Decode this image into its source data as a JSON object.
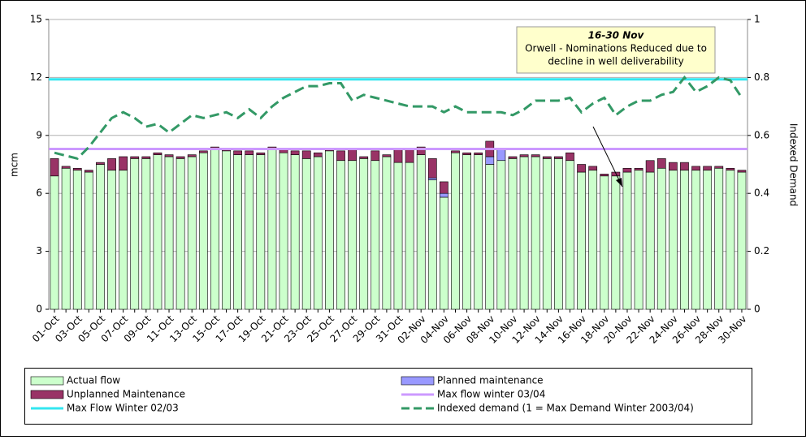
{
  "chart_data": {
    "type": "bar",
    "stacked": true,
    "ylabel": "mcm",
    "y2label": "Indexed Demand",
    "ylim": [
      0,
      15
    ],
    "yticks": [
      0,
      3,
      6,
      9,
      12,
      15
    ],
    "y2lim": [
      0,
      1
    ],
    "y2ticks": [
      0,
      0.2,
      0.4,
      0.6,
      0.8,
      1
    ],
    "grid": true,
    "categories": [
      "01-Oct",
      null,
      "03-Oct",
      null,
      "05-Oct",
      null,
      "07-Oct",
      null,
      "09-Oct",
      null,
      "11-Oct",
      null,
      "13-Oct",
      null,
      "15-Oct",
      null,
      "17-Oct",
      null,
      "19-Oct",
      null,
      "21-Oct",
      null,
      "23-Oct",
      null,
      "25-Oct",
      null,
      "27-Oct",
      null,
      "29-Oct",
      null,
      "31-Oct",
      null,
      "02-Nov",
      null,
      "04-Nov",
      null,
      "06-Nov",
      null,
      "08-Nov",
      null,
      "10-Nov",
      null,
      "12-Nov",
      null,
      "14-Nov",
      null,
      "16-Nov",
      null,
      "18-Nov",
      null,
      "20-Nov",
      null,
      "22-Nov",
      null,
      "24-Nov",
      null,
      "26-Nov",
      null,
      "28-Nov",
      null,
      "30-Nov"
    ],
    "series": [
      {
        "name": "Actual flow",
        "mark": "bar",
        "color": "#ccffcc",
        "values": [
          6.9,
          7.3,
          7.2,
          7.1,
          7.5,
          7.2,
          7.2,
          7.8,
          7.8,
          8.0,
          7.9,
          7.8,
          7.9,
          8.1,
          8.3,
          8.2,
          8.0,
          8.0,
          8.0,
          8.3,
          8.1,
          8.0,
          7.8,
          7.9,
          8.2,
          7.7,
          7.7,
          7.8,
          7.7,
          7.9,
          7.6,
          7.6,
          8.0,
          6.7,
          5.8,
          8.1,
          8.0,
          8.0,
          7.5,
          7.7,
          7.8,
          7.9,
          7.9,
          7.8,
          7.8,
          7.7,
          7.1,
          7.2,
          6.9,
          6.9,
          7.1,
          7.2,
          7.1,
          7.3,
          7.2,
          7.2,
          7.2,
          7.2,
          7.3,
          7.2,
          7.1
        ]
      },
      {
        "name": "Planned maintenance",
        "mark": "bar",
        "color": "#9999ff",
        "values": [
          0,
          0,
          0,
          0,
          0,
          0,
          0,
          0,
          0,
          0,
          0,
          0,
          0,
          0,
          0,
          0,
          0,
          0,
          0,
          0,
          0,
          0,
          0,
          0,
          0,
          0,
          0,
          0,
          0,
          0,
          0,
          0,
          0,
          0.1,
          0.2,
          0,
          0,
          0,
          0.4,
          0.6,
          0,
          0,
          0,
          0,
          0,
          0,
          0,
          0,
          0,
          0,
          0,
          0,
          0,
          0,
          0,
          0,
          0,
          0,
          0,
          0,
          0
        ]
      },
      {
        "name": "Unplanned Maintenance",
        "mark": "bar",
        "color": "#993366",
        "values": [
          0.9,
          0.1,
          0.1,
          0.1,
          0.1,
          0.6,
          0.7,
          0.1,
          0.1,
          0.1,
          0.1,
          0.1,
          0.1,
          0.1,
          0.1,
          0.1,
          0.2,
          0.2,
          0.1,
          0.1,
          0.2,
          0.2,
          0.4,
          0.2,
          0.1,
          0.5,
          0.6,
          0.1,
          0.5,
          0.1,
          0.7,
          0.7,
          0.4,
          1.0,
          0.6,
          0.1,
          0.1,
          0.1,
          0.8,
          0,
          0.1,
          0.1,
          0.1,
          0.1,
          0.1,
          0.4,
          0.4,
          0.2,
          0.1,
          0.2,
          0.2,
          0.1,
          0.6,
          0.5,
          0.4,
          0.4,
          0.2,
          0.2,
          0.1,
          0.1,
          0.1
        ]
      },
      {
        "name": "Max flow winter 03/04",
        "mark": "hline",
        "color": "#cc99ff",
        "value": 8.3
      },
      {
        "name": "Max Flow Winter 02/03",
        "mark": "hline",
        "color": "#33e6f0",
        "value": 11.9
      },
      {
        "name": "Indexed demand (1 = Max Demand Winter 2003/04)",
        "mark": "line",
        "dash": true,
        "axis": "y2",
        "color": "#339966",
        "values": [
          0.54,
          0.53,
          0.52,
          0.56,
          0.61,
          0.66,
          0.68,
          0.66,
          0.63,
          0.64,
          0.61,
          0.64,
          0.67,
          0.66,
          0.67,
          0.68,
          0.66,
          0.69,
          0.66,
          0.7,
          0.73,
          0.75,
          0.77,
          0.77,
          0.78,
          0.78,
          0.72,
          0.74,
          0.73,
          0.72,
          0.71,
          0.7,
          0.7,
          0.7,
          0.68,
          0.7,
          0.68,
          0.68,
          0.68,
          0.68,
          0.67,
          0.69,
          0.72,
          0.72,
          0.72,
          0.73,
          0.68,
          0.71,
          0.73,
          0.67,
          0.7,
          0.72,
          0.72,
          0.74,
          0.75,
          0.8,
          0.75,
          0.77,
          0.8,
          0.79,
          0.73
        ]
      }
    ],
    "annotation": {
      "title": "16-30 Nov",
      "lines": [
        "Orwell - Nominations Reduced due to",
        "decline in well deliverability"
      ]
    }
  }
}
